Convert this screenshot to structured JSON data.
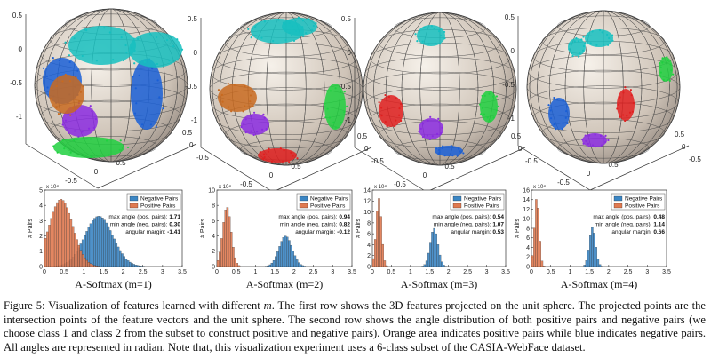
{
  "caption": {
    "label": "Figure 5:",
    "text_before": "Visualization of features learned with different",
    "symbol": "m",
    "text_after": ". The first row shows the 3D features projected on the unit sphere. The projected points are the intersection points of the feature vectors and the unit sphere. The second row shows the angle distribution of both positive pairs and negative pairs (we choose class 1 and class 2 from the subset to construct positive and negative pairs). Orange area indicates positive pairs while blue indicates negative pairs. All angles are represented in radian. Note that, this visualization experiment uses a 6-class subset of the CASIA-WebFace dataset."
  },
  "colors": {
    "negative": "#3b86c4",
    "positive": "#e07a50",
    "cluster_colors": [
      "#1a5fd6",
      "#8b2be0",
      "#16c0c0",
      "#20d040",
      "#e02020",
      "#c86a20"
    ]
  },
  "sphere_axis": {
    "z_ticks": [
      "0.5",
      "0",
      "-0.5",
      "-1"
    ],
    "front_ticks": [
      "-0.5",
      "0",
      "0.5"
    ],
    "side_ticks": [
      "0.5",
      "0",
      "-0.5"
    ],
    "left_ticks": [
      "-1",
      "-0.5",
      "0",
      "0.5",
      "1"
    ]
  },
  "chart_data": [
    {
      "type": "bar",
      "title": "A-Softmax (m=1)",
      "ylabel": "# Pairs",
      "y_exponent": "x 10⁴",
      "xlim": [
        0,
        3.5
      ],
      "ylim": [
        0,
        5
      ],
      "xticks": [
        "0",
        "0.5",
        "1",
        "1.5",
        "2",
        "2.5",
        "3",
        "3.5"
      ],
      "yticks": [
        "0",
        "1",
        "2",
        "3",
        "4",
        "5"
      ],
      "series": [
        {
          "name": "Negative Pairs",
          "center": 1.38,
          "sd": 0.36,
          "peak": 3.3
        },
        {
          "name": "Positive Pairs",
          "center": 0.42,
          "sd": 0.3,
          "peak": 4.4
        }
      ],
      "stats": [
        {
          "label": "max angle (pos. pairs):",
          "value": "1.71"
        },
        {
          "label": "min angle (neg. pairs):",
          "value": "0.30"
        },
        {
          "label": "angular margin:",
          "value": "-1.41"
        }
      ]
    },
    {
      "type": "bar",
      "title": "A-Softmax (m=2)",
      "ylabel": "# Pairs",
      "y_exponent": "x 10⁴",
      "xlim": [
        0,
        3.5
      ],
      "ylim": [
        0,
        10
      ],
      "xticks": [
        "0",
        "0.5",
        "1",
        "1.5",
        "2",
        "2.5",
        "3",
        "3.5"
      ],
      "yticks": [
        "0",
        "2",
        "4",
        "6",
        "8",
        "10"
      ],
      "series": [
        {
          "name": "Negative Pairs",
          "center": 1.78,
          "sd": 0.17,
          "peak": 4.0
        },
        {
          "name": "Positive Pairs",
          "center": 0.26,
          "sd": 0.11,
          "peak": 7.8
        }
      ],
      "stats": [
        {
          "label": "max angle (pos. pairs):",
          "value": "0.94"
        },
        {
          "label": "min angle (neg. pairs):",
          "value": "0.82"
        },
        {
          "label": "angular margin:",
          "value": "-0.12"
        }
      ]
    },
    {
      "type": "bar",
      "title": "A-Softmax (m=3)",
      "ylabel": "# Pairs",
      "y_exponent": "x 10⁴",
      "xlim": [
        0,
        3.5
      ],
      "ylim": [
        0,
        14
      ],
      "xticks": [
        "0",
        "0.5",
        "1",
        "1.5",
        "2",
        "2.5",
        "3",
        "3.5"
      ],
      "yticks": [
        "0",
        "2",
        "4",
        "6",
        "8",
        "10",
        "12",
        "14"
      ],
      "series": [
        {
          "name": "Negative Pairs",
          "center": 1.62,
          "sd": 0.1,
          "peak": 7.0
        },
        {
          "name": "Positive Pairs",
          "center": 0.17,
          "sd": 0.07,
          "peak": 12.5
        }
      ],
      "stats": [
        {
          "label": "max angle (pos. pairs):",
          "value": "0.54"
        },
        {
          "label": "min angle (neg. pairs):",
          "value": "1.07"
        },
        {
          "label": "angular margin:",
          "value": "0.53"
        }
      ]
    },
    {
      "type": "bar",
      "title": "A-Softmax (m=4)",
      "ylabel": "# Pairs",
      "y_exponent": "x 10⁴",
      "xlim": [
        0,
        3.5
      ],
      "ylim": [
        0,
        16
      ],
      "xticks": [
        "0",
        "0.5",
        "1",
        "1.5",
        "2",
        "2.5",
        "3",
        "3.5"
      ],
      "yticks": [
        "0",
        "2",
        "4",
        "6",
        "8",
        "10",
        "12",
        "14",
        "16"
      ],
      "series": [
        {
          "name": "Negative Pairs",
          "center": 1.58,
          "sd": 0.08,
          "peak": 8.2
        },
        {
          "name": "Positive Pairs",
          "center": 0.14,
          "sd": 0.06,
          "peak": 14.5
        }
      ],
      "stats": [
        {
          "label": "max angle (pos. pairs):",
          "value": "0.48"
        },
        {
          "label": "min angle (neg. pairs):",
          "value": "1.14"
        },
        {
          "label": "angular margin:",
          "value": "0.66"
        }
      ]
    }
  ]
}
